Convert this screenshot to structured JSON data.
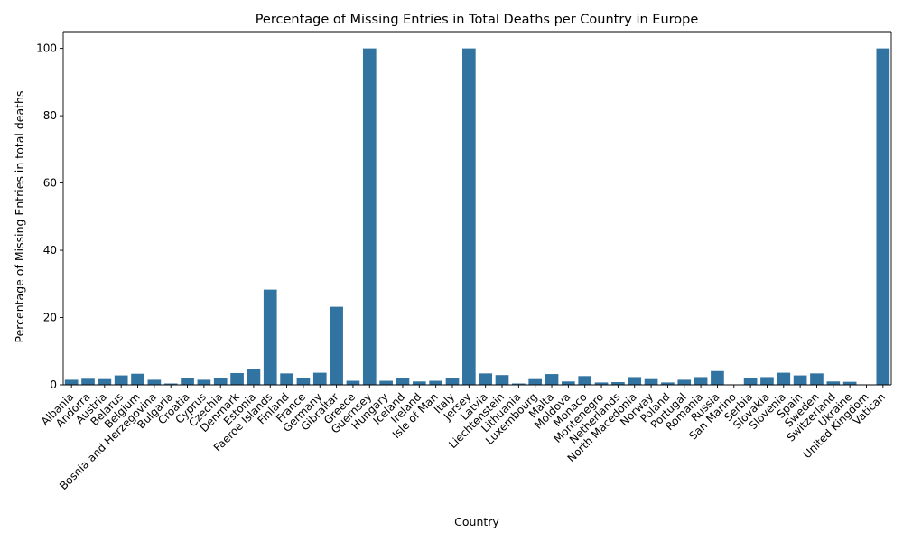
{
  "chart_data": {
    "type": "bar",
    "title": "Percentage of Missing Entries in Total Deaths per Country in Europe",
    "xlabel": "Country",
    "ylabel": "Percentage of Missing Entries in total deaths",
    "ylim": [
      0,
      105
    ],
    "yticks": [
      0,
      20,
      40,
      60,
      80,
      100
    ],
    "bar_color": "#3274a1",
    "grid": false,
    "categories": [
      "Albania",
      "Andorra",
      "Austria",
      "Belarus",
      "Belgium",
      "Bosnia and Herzegovina",
      "Bulgaria",
      "Croatia",
      "Cyprus",
      "Czechia",
      "Denmark",
      "Estonia",
      "Faeroe Islands",
      "Finland",
      "France",
      "Germany",
      "Gibraltar",
      "Greece",
      "Guernsey",
      "Hungary",
      "Iceland",
      "Ireland",
      "Isle of Man",
      "Italy",
      "Jersey",
      "Latvia",
      "Liechtenstein",
      "Lithuania",
      "Luxembourg",
      "Malta",
      "Moldova",
      "Monaco",
      "Montenegro",
      "Netherlands",
      "North Macedonia",
      "Norway",
      "Poland",
      "Portugal",
      "Romania",
      "Russia",
      "San Marino",
      "Serbia",
      "Slovakia",
      "Slovenia",
      "Spain",
      "Sweden",
      "Switzerland",
      "Ukraine",
      "United Kingdom",
      "Vatican"
    ],
    "values": [
      1.5,
      1.8,
      1.7,
      2.8,
      3.3,
      1.5,
      0.4,
      2.0,
      1.5,
      2.0,
      3.5,
      4.7,
      28.3,
      3.4,
      2.1,
      3.6,
      23.2,
      1.2,
      100,
      1.2,
      2.0,
      1.0,
      1.2,
      2.0,
      100,
      3.4,
      2.9,
      0.4,
      1.7,
      3.2,
      1.0,
      2.6,
      0.7,
      0.8,
      2.3,
      1.7,
      0.7,
      1.5,
      2.3,
      4.1,
      0.0,
      2.1,
      2.3,
      3.6,
      2.8,
      3.4,
      1.0,
      0.9,
      0.0,
      100
    ]
  }
}
